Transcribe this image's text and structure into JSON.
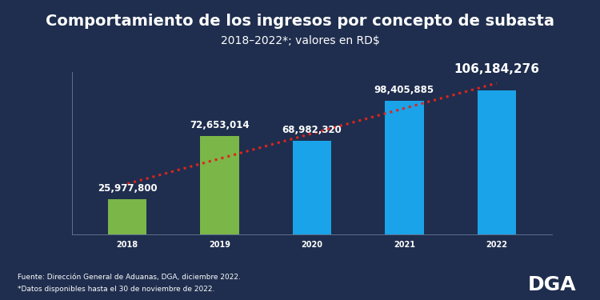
{
  "chart_data": {
    "type": "bar",
    "title": "Comportamiento de los ingresos por concepto de subasta",
    "subtitle": "2018–2022*; valores en RD$",
    "categories": [
      "2018",
      "2019",
      "2020",
      "2021",
      "2022"
    ],
    "series": [
      {
        "type": "bar",
        "colors": [
          "#7ab648",
          "#7ab648",
          "#1aa3e8",
          "#1aa3e8",
          "#1aa3e8"
        ],
        "values": [
          25977800,
          72653014,
          68982320,
          98405885,
          106184276
        ],
        "value_labels": [
          "25,977,800",
          "72,653,014",
          "68,982,320",
          "98,405,885",
          "106,184,276"
        ],
        "data_labels": true
      },
      {
        "type": "line",
        "color": "#e0241b",
        "line_style": "dotted",
        "values": [
          37200000,
          55800000,
          74400000,
          93100000,
          111700000
        ]
      }
    ],
    "ylim": [
      0,
      120000000
    ],
    "yticks": [],
    "grid": false,
    "tick_labels": "x",
    "annotations": [
      "Fuente: Dirección General de Aduanas, DGA, diciembre 2022.",
      "*Datos disponibles hasta el 30 de noviembre de 2022.",
      "DGA"
    ]
  }
}
